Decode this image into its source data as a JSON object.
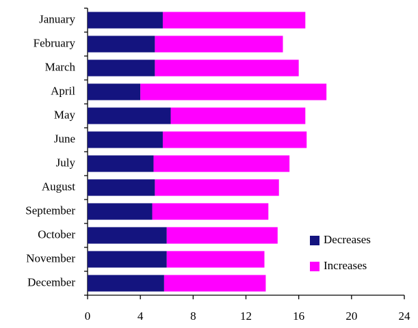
{
  "chart_data": {
    "type": "stacked-barh",
    "categories": [
      "January",
      "February",
      "March",
      "April",
      "May",
      "June",
      "July",
      "August",
      "September",
      "October",
      "November",
      "December"
    ],
    "series": [
      {
        "name": "Decreases",
        "color": "#14147f",
        "values": [
          5.7,
          5.1,
          5.1,
          4.0,
          6.3,
          5.7,
          5.0,
          5.1,
          4.9,
          6.0,
          6.0,
          5.8
        ]
      },
      {
        "name": "Increases",
        "color": "#ff00ff",
        "values": [
          10.8,
          9.7,
          10.9,
          14.1,
          10.2,
          10.9,
          10.3,
          9.4,
          8.8,
          8.4,
          7.4,
          7.7
        ]
      }
    ],
    "xlim": [
      0,
      24
    ],
    "xticks": [
      0,
      4,
      8,
      12,
      16,
      20,
      24
    ],
    "grid": false,
    "legend": "lower right"
  }
}
